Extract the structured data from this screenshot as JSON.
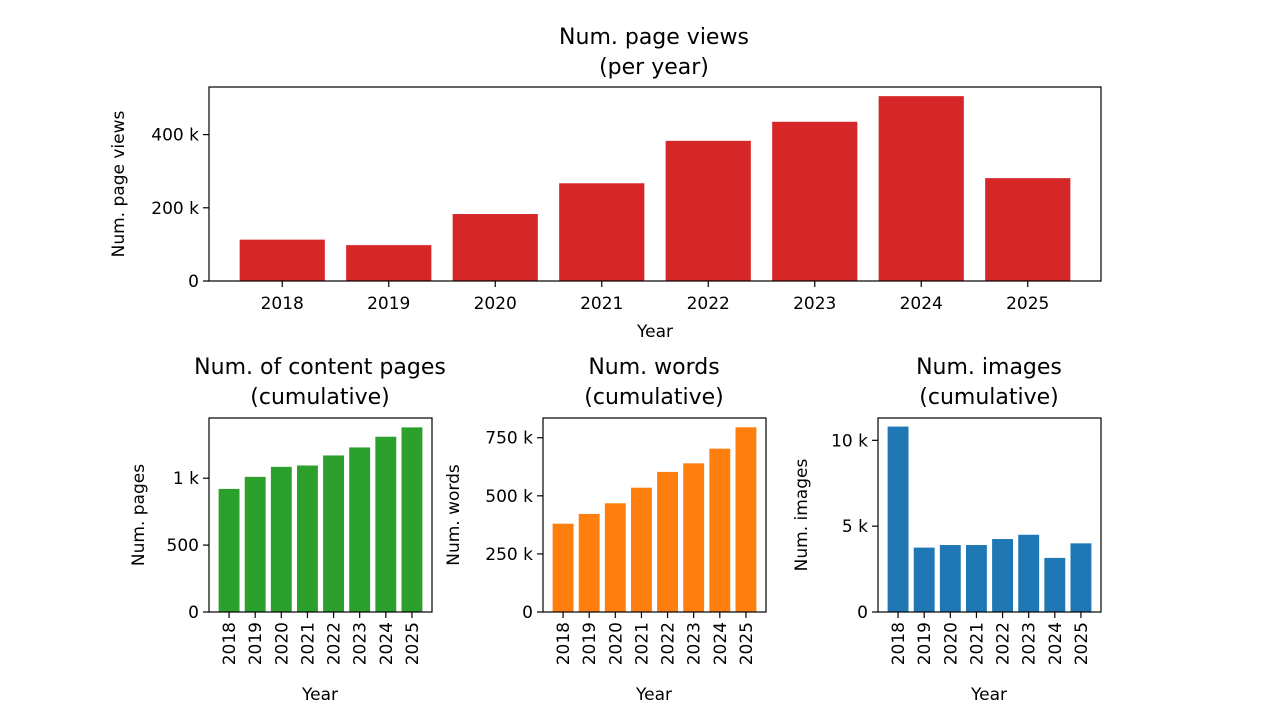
{
  "chart_data": [
    {
      "id": "views",
      "type": "bar",
      "title_line1": "Num. page views",
      "title_line2": "(per year)",
      "xlabel": "Year",
      "ylabel": "Num. page views",
      "categories": [
        "2018",
        "2019",
        "2020",
        "2021",
        "2022",
        "2023",
        "2024",
        "2025"
      ],
      "values": [
        113000,
        98000,
        183000,
        267000,
        383000,
        435000,
        505000,
        281000
      ],
      "ylim": [
        0,
        530000
      ],
      "yticks": [
        0,
        200000,
        400000
      ],
      "yticklabels": [
        "0",
        "200 k",
        "400 k"
      ],
      "color": "#d62728",
      "rotate_xticks": false
    },
    {
      "id": "pages",
      "type": "bar",
      "title_line1": "Num. of content pages",
      "title_line2": "(cumulative)",
      "xlabel": "Year",
      "ylabel": "Num. pages",
      "categories": [
        "2018",
        "2019",
        "2020",
        "2021",
        "2022",
        "2023",
        "2024",
        "2025"
      ],
      "values": [
        920,
        1010,
        1085,
        1095,
        1170,
        1230,
        1310,
        1380
      ],
      "ylim": [
        0,
        1450
      ],
      "yticks": [
        0,
        500,
        1000
      ],
      "yticklabels": [
        "0",
        "500",
        "1 k"
      ],
      "color": "#2ca02c",
      "rotate_xticks": true
    },
    {
      "id": "words",
      "type": "bar",
      "title_line1": "Num. words",
      "title_line2": "(cumulative)",
      "xlabel": "Year",
      "ylabel": "Num. words",
      "categories": [
        "2018",
        "2019",
        "2020",
        "2021",
        "2022",
        "2023",
        "2024",
        "2025"
      ],
      "values": [
        380000,
        422000,
        468000,
        535000,
        603000,
        640000,
        703000,
        795000
      ],
      "ylim": [
        0,
        835000
      ],
      "yticks": [
        0,
        250000,
        500000,
        750000
      ],
      "yticklabels": [
        "0",
        "250 k",
        "500 k",
        "750 k"
      ],
      "color": "#ff7f0e",
      "rotate_xticks": true
    },
    {
      "id": "images",
      "type": "bar",
      "title_line1": "Num. images",
      "title_line2": "(cumulative)",
      "xlabel": "Year",
      "ylabel": "Num. images",
      "categories": [
        "2018",
        "2019",
        "2020",
        "2021",
        "2022",
        "2023",
        "2024",
        "2025"
      ],
      "values": [
        10800,
        3750,
        3900,
        3900,
        4250,
        4500,
        3150,
        4000
      ],
      "ylim": [
        0,
        11300
      ],
      "yticks": [
        0,
        5000,
        10000
      ],
      "yticklabels": [
        "0",
        "5 k",
        "10 k"
      ],
      "color": "#1f77b4",
      "rotate_xticks": true
    }
  ]
}
